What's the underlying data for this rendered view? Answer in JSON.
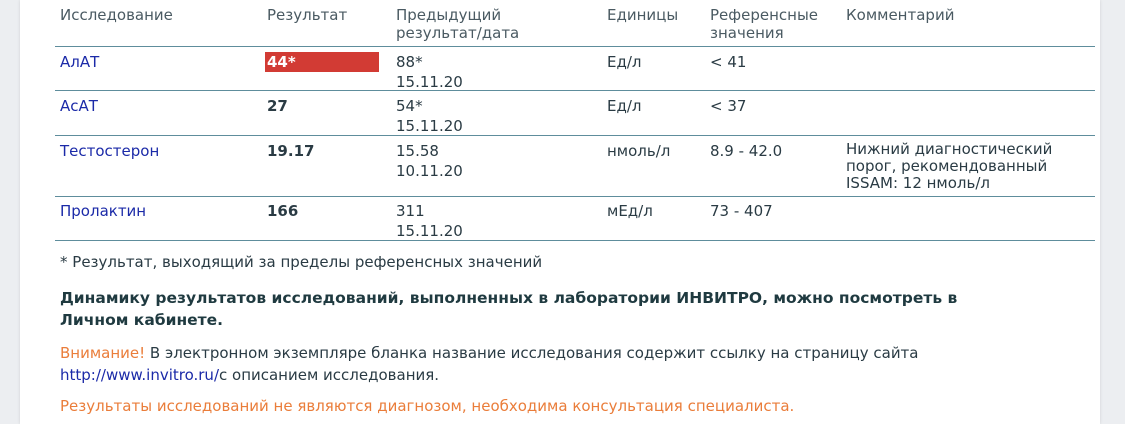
{
  "table": {
    "headers": {
      "test": "Исследование",
      "result": "Результат",
      "previous_line1": "Предыдущий",
      "previous_line2": "результат/дата",
      "units": "Единицы",
      "reference_line1": "Референсные",
      "reference_line2": "значения",
      "comment": "Комментарий"
    },
    "rows": [
      {
        "test": "АлАТ",
        "result": "44*",
        "out_of_range": true,
        "prev_value": "88*",
        "prev_date": "15.11.20",
        "units": "Ед/л",
        "reference": "< 41",
        "comment": []
      },
      {
        "test": "АсАТ",
        "result": "27",
        "out_of_range": false,
        "prev_value": "54*",
        "prev_date": "15.11.20",
        "units": "Ед/л",
        "reference": "< 37",
        "comment": []
      },
      {
        "test": "Тестостерон",
        "result": "19.17",
        "out_of_range": false,
        "prev_value": "15.58",
        "prev_date": "10.11.20",
        "units": "нмоль/л",
        "reference": "8.9 - 42.0",
        "comment": [
          "Нижний диагностический",
          "порог, рекомендованный",
          "ISSAM: 12 нмоль/л"
        ]
      },
      {
        "test": "Пролактин",
        "result": "166",
        "out_of_range": false,
        "prev_value": "311",
        "prev_date": "15.11.20",
        "units": "мЕд/л",
        "reference": "73 - 407",
        "comment": []
      }
    ]
  },
  "footnote": "* Результат, выходящий за пределы референсных значений",
  "dynamics_note": {
    "line1": "Динамику результатов исследований, выполненных в лаборатории ИНВИТРО, можно посмотреть в",
    "line2": "Личном кабинете."
  },
  "warning": {
    "label": "Внимание!",
    "text1": " В электронном экземпляре бланка название исследования содержит ссылку на страницу сайта",
    "link": "http://www.invitro.ru/",
    "text2": "с описанием исследования."
  },
  "disclaimer": "Результаты исследований не являются диагнозом, необходима консультация специалиста.",
  "colors": {
    "flag": "#d23b34",
    "link": "#1b2aa8",
    "warning": "#ea7d3a",
    "rule": "#5e8d9c"
  }
}
